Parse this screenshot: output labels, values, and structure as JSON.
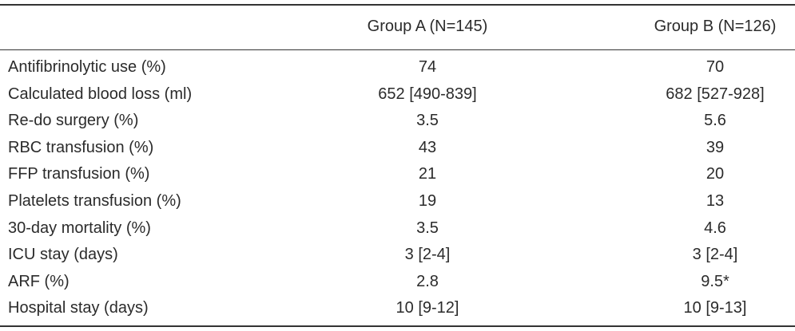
{
  "table": {
    "columns": [
      "Group A (N=145)",
      "Group B (N=126)"
    ],
    "rows": [
      [
        "Antifibrinolytic use (%)",
        "74",
        "70"
      ],
      [
        "Calculated blood loss (ml)",
        "652 [490-839]",
        "682 [527-928]"
      ],
      [
        "Re-do surgery (%)",
        "3.5",
        "5.6"
      ],
      [
        "RBC transfusion (%)",
        "43",
        "39"
      ],
      [
        "FFP transfusion (%)",
        "21",
        "20"
      ],
      [
        "Platelets transfusion (%)",
        "19",
        "13"
      ],
      [
        "30-day mortality (%)",
        "3.5",
        "4.6"
      ],
      [
        "ICU stay (days)",
        "3 [2-4]",
        "3 [2-4]"
      ],
      [
        "ARF (%)",
        "2.8",
        "9.5*"
      ],
      [
        "Hospital stay (days)",
        "10 [9-12]",
        "10 [9-13]"
      ]
    ]
  }
}
